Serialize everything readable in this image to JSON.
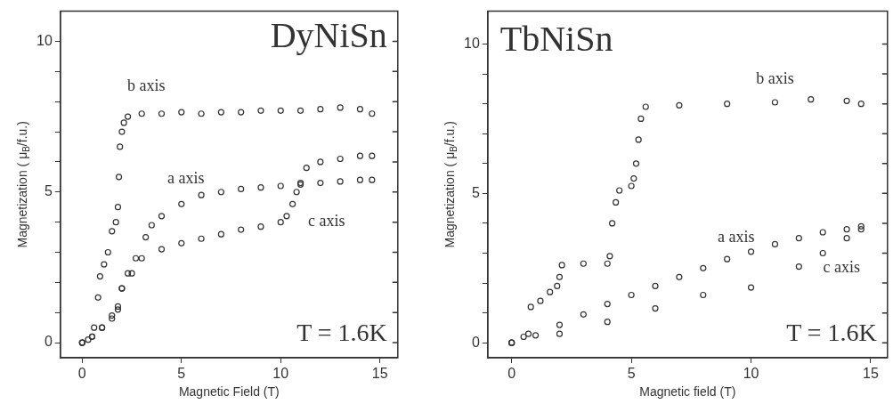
{
  "chart_data": [
    {
      "type": "scatter",
      "title": "DyNiSn",
      "xlabel": "Magnetic Field (T)",
      "ylabel": "Magnetization ( μ$_{B}$/f.u.)",
      "xlim": [
        -1.1,
        15.9
      ],
      "xticks": [
        0,
        5,
        10,
        15
      ],
      "ylim": [
        -0.5,
        11
      ],
      "yticks": [
        0,
        {
          "value": 1,
          "label": null
        },
        {
          "value": 2,
          "label": null
        },
        {
          "value": 3,
          "label": null
        },
        {
          "value": 4,
          "label": null
        },
        5,
        {
          "value": 6,
          "label": null
        },
        {
          "value": 7,
          "label": null
        },
        {
          "value": 8,
          "label": null
        },
        {
          "value": 9,
          "label": null
        },
        10
      ],
      "grid": false,
      "legend": false,
      "marker": "circle",
      "series": [
        {
          "name": "b axis",
          "color": "#333333",
          "x": [
            0,
            0.3,
            0.6,
            0.8,
            0.9,
            1.1,
            1.3,
            1.5,
            1.7,
            1.8,
            1.85,
            1.9,
            2.0,
            2.1,
            2.3,
            3,
            4,
            5,
            6,
            7,
            8,
            9,
            10,
            11,
            12,
            13,
            14,
            14.6
          ],
          "values": [
            0,
            0.1,
            0.5,
            1.5,
            2.2,
            2.6,
            3.0,
            3.7,
            4.0,
            4.5,
            5.5,
            6.5,
            7.0,
            7.3,
            7.5,
            7.6,
            7.6,
            7.65,
            7.6,
            7.65,
            7.65,
            7.7,
            7.7,
            7.7,
            7.75,
            7.8,
            7.75,
            7.6
          ]
        },
        {
          "name": "a axis",
          "color": "#333333",
          "x": [
            0,
            0.5,
            1,
            1.5,
            1.8,
            2,
            2.3,
            2.7,
            3.2,
            3.5,
            4,
            5,
            6,
            7,
            8,
            9,
            10,
            11,
            12,
            13,
            14,
            14.6
          ],
          "values": [
            0,
            0.2,
            0.5,
            0.9,
            1.2,
            1.8,
            2.3,
            2.8,
            3.5,
            3.9,
            4.2,
            4.6,
            4.9,
            5.0,
            5.1,
            5.15,
            5.2,
            5.25,
            5.3,
            5.35,
            5.4,
            5.4
          ]
        },
        {
          "name": "c axis",
          "color": "#333333",
          "x": [
            0,
            0.5,
            1,
            1.5,
            1.8,
            2,
            2.5,
            3,
            4,
            5,
            6,
            7,
            8,
            9,
            10,
            10.3,
            10.6,
            10.8,
            11,
            11.3,
            12,
            13,
            14,
            14.6
          ],
          "values": [
            0,
            0.2,
            0.5,
            0.8,
            1.1,
            1.8,
            2.3,
            2.8,
            3.1,
            3.3,
            3.45,
            3.6,
            3.75,
            3.85,
            4.0,
            4.2,
            4.6,
            5.0,
            5.3,
            5.8,
            6.0,
            6.1,
            6.2,
            6.2
          ]
        }
      ],
      "annotations": [
        "T = 1.6K"
      ]
    },
    {
      "type": "scatter",
      "title": "TbNiSn",
      "xlabel": "Magnetic field (T)",
      "ylabel": "Magnetization ( μ$_{B}$/f.u.)",
      "xlim": [
        -1,
        15.7
      ],
      "xticks": [
        0,
        5,
        10,
        15
      ],
      "ylim": [
        -0.5,
        11.1
      ],
      "yticks": [
        0,
        {
          "value": 1,
          "label": null
        },
        {
          "value": 2,
          "label": null
        },
        {
          "value": 3,
          "label": null
        },
        {
          "value": 4,
          "label": null
        },
        5,
        {
          "value": 6,
          "label": null
        },
        {
          "value": 7,
          "label": null
        },
        {
          "value": 8,
          "label": null
        },
        {
          "value": 9,
          "label": null
        },
        10
      ],
      "grid": false,
      "legend": false,
      "marker": "circle",
      "series": [
        {
          "name": "b axis",
          "color": "#333333",
          "x": [
            0,
            0.5,
            0.7,
            0.8,
            1.2,
            1.6,
            1.9,
            2.0,
            2.1,
            3,
            4,
            4.1,
            4.2,
            4.35,
            4.5,
            5,
            5.1,
            5.2,
            5.3,
            5.4,
            5.6,
            7,
            9,
            11,
            12.5,
            14,
            14.6
          ],
          "values": [
            0,
            0.2,
            0.3,
            1.2,
            1.4,
            1.7,
            1.9,
            2.2,
            2.6,
            2.65,
            2.65,
            2.9,
            4.0,
            4.7,
            5.1,
            5.25,
            5.5,
            6.0,
            6.8,
            7.5,
            7.9,
            7.95,
            8.0,
            8.05,
            8.15,
            8.1,
            8.0
          ]
        },
        {
          "name": "a axis",
          "color": "#333333",
          "x": [
            0,
            1,
            2,
            3,
            4,
            5,
            6,
            7,
            8,
            9,
            10,
            11,
            12,
            13,
            14,
            14.6
          ],
          "values": [
            0,
            0.25,
            0.6,
            0.95,
            1.3,
            1.6,
            1.9,
            2.2,
            2.5,
            2.8,
            3.05,
            3.3,
            3.5,
            3.7,
            3.8,
            3.9
          ]
        },
        {
          "name": "c axis",
          "color": "#333333",
          "x": [
            0,
            2,
            4,
            6,
            8,
            10,
            12,
            13,
            14,
            14.6
          ],
          "values": [
            0,
            0.3,
            0.7,
            1.15,
            1.6,
            1.85,
            2.55,
            3.0,
            3.5,
            3.8
          ]
        }
      ],
      "annotations": [
        "T = 1.6K"
      ]
    }
  ]
}
